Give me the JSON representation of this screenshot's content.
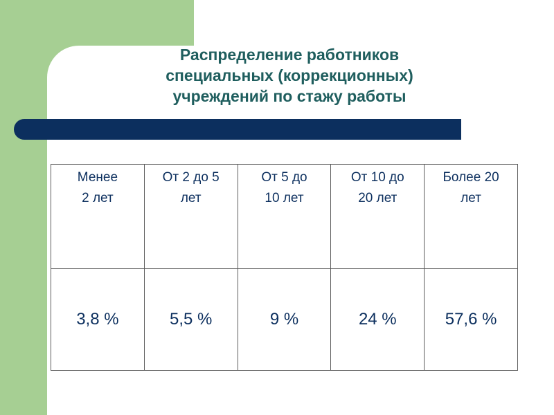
{
  "title": {
    "line1": "Распределение работников",
    "line2": "специальных (коррекционных)",
    "line3": "учреждений по стажу работы"
  },
  "table": {
    "headers": [
      {
        "line1": "Менее",
        "line2": "2 лет"
      },
      {
        "line1": "От 2 до 5",
        "line2": "лет"
      },
      {
        "line1": "От 5 до",
        "line2": "10 лет"
      },
      {
        "line1": "От 10 до",
        "line2": "20 лет"
      },
      {
        "line1": "Более 20",
        "line2": "лет"
      }
    ],
    "values": [
      "3,8 %",
      "5,5 %",
      "9 %",
      "24 %",
      "57,6 %"
    ]
  },
  "colors": {
    "green_band": "#a6cf93",
    "title_text": "#1f5e5e",
    "bar": "#0c2f5e",
    "table_text": "#0c2f5e",
    "border": "#5b5b5b"
  }
}
